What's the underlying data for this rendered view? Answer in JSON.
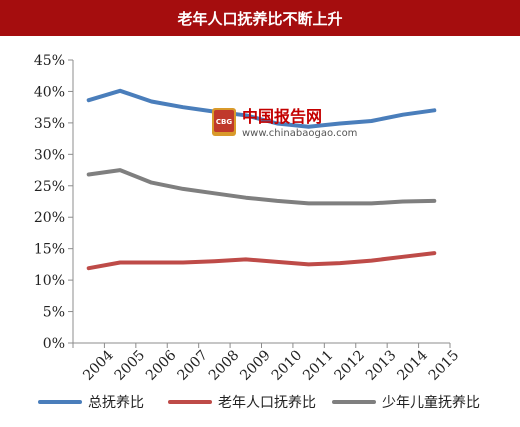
{
  "chart_data": {
    "type": "line",
    "title": "老年人口抚养比不断上升",
    "categories": [
      "2004",
      "2005",
      "2006",
      "2007",
      "2008",
      "2009",
      "2010",
      "2011",
      "2012",
      "2013",
      "2014",
      "2015"
    ],
    "series": [
      {
        "name": "总抚养比",
        "color": "#4a7ebb",
        "values": [
          38.6,
          40.1,
          38.4,
          37.5,
          36.8,
          36.2,
          34.9,
          34.4,
          34.9,
          35.3,
          36.3,
          37.0
        ]
      },
      {
        "name": "老年人口抚养比",
        "color": "#be4b48",
        "values": [
          11.9,
          12.8,
          12.8,
          12.8,
          13.0,
          13.3,
          12.9,
          12.5,
          12.7,
          13.1,
          13.7,
          14.3
        ]
      },
      {
        "name": "少年儿童抚养比",
        "color": "#7f7f7f",
        "values": [
          26.8,
          27.5,
          25.5,
          24.5,
          23.8,
          23.1,
          22.6,
          22.2,
          22.2,
          22.2,
          22.5,
          22.6
        ]
      }
    ],
    "y_ticks": [
      "0%",
      "5%",
      "10%",
      "15%",
      "20%",
      "25%",
      "30%",
      "35%",
      "40%",
      "45%"
    ],
    "ylim": [
      0,
      45
    ],
    "grid": false,
    "legend_position": "bottom"
  },
  "watermark": {
    "name_cn": "中国报告网",
    "url": "www.chinabaogao.com",
    "logo_text": "CBG"
  }
}
